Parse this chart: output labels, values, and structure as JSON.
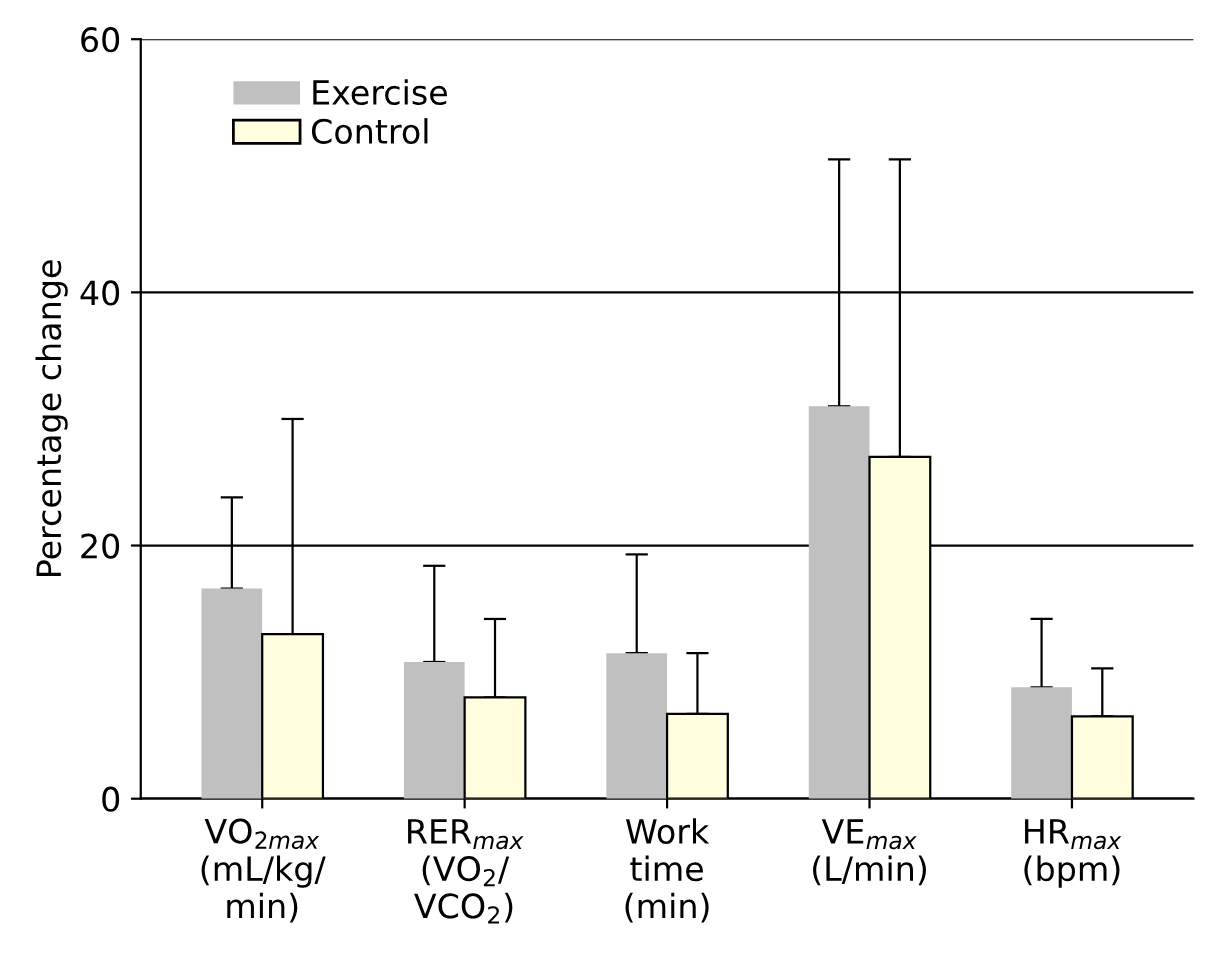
{
  "chart_data": {
    "type": "bar",
    "ylabel": "Percentage change",
    "categories": [
      "VO$_{2max}$\n(mL/kg/\nmin)",
      "RER$_{max}$\n(VO$_{2}$/\nVCO$_{2}$)",
      "Work\ntime\n(min)",
      "VE$_{max}$\n(L/min)",
      "HR$_{max}$\n(bpm)"
    ],
    "series": [
      {
        "name": "Exercise",
        "color": "#c0c0c0",
        "values": [
          16.6,
          10.8,
          11.5,
          31,
          8.8
        ],
        "errors": [
          [
            16.6,
            23.8
          ],
          [
            10.8,
            18.4
          ],
          [
            11.5,
            19.3
          ],
          [
            31,
            50.5
          ],
          [
            8.8,
            14.2
          ]
        ]
      },
      {
        "name": "Control",
        "color": "#ffffe0",
        "values": [
          13,
          8,
          6.7,
          27,
          6.5
        ],
        "errors": [
          [
            13,
            30
          ],
          [
            8,
            14.2
          ],
          [
            6.7,
            11.5
          ],
          [
            27,
            50.5
          ],
          [
            6.5,
            10.3
          ]
        ]
      }
    ],
    "ylim": [
      0,
      60
    ],
    "yticks": [
      0,
      20,
      40,
      60
    ],
    "grid": "y",
    "legend": "top left"
  }
}
